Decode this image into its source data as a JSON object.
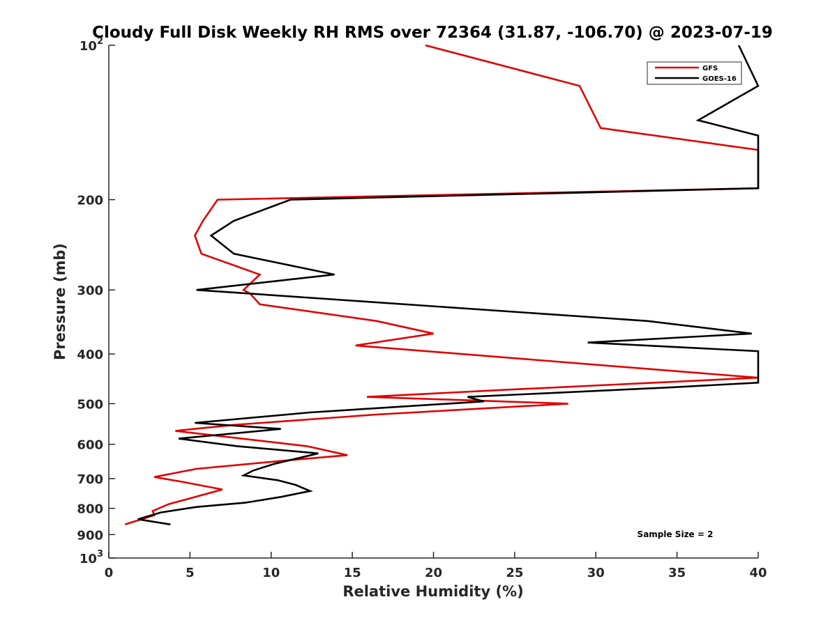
{
  "chart_data": {
    "type": "line",
    "title": "Cloudy Full Disk Weekly RH RMS over 72364 (31.87, -106.70) @ 2023-07-19",
    "xlabel": "Relative Humidity (%)",
    "ylabel": "Pressure (mb)",
    "xlim": [
      0,
      40
    ],
    "ylim": [
      100,
      1000
    ],
    "y_scale": "log",
    "y_reversed": true,
    "grid": false,
    "legend_position": "top-right",
    "x_ticks": [
      {
        "value": 0,
        "label": "0"
      },
      {
        "value": 5,
        "label": "5"
      },
      {
        "value": 10,
        "label": "10"
      },
      {
        "value": 15,
        "label": "15"
      },
      {
        "value": 20,
        "label": "20"
      },
      {
        "value": 25,
        "label": "25"
      },
      {
        "value": 30,
        "label": "30"
      },
      {
        "value": 35,
        "label": "35"
      },
      {
        "value": 40,
        "label": "40"
      }
    ],
    "y_ticks": [
      {
        "value": 100,
        "base": "10",
        "exp": "2"
      },
      {
        "value": 200,
        "label": "200"
      },
      {
        "value": 300,
        "label": "300"
      },
      {
        "value": 400,
        "label": "400"
      },
      {
        "value": 500,
        "label": "500"
      },
      {
        "value": 600,
        "label": "600"
      },
      {
        "value": 700,
        "label": "700"
      },
      {
        "value": 800,
        "label": "800"
      },
      {
        "value": 900,
        "label": "900"
      },
      {
        "value": 1000,
        "base": "10",
        "exp": "3"
      }
    ],
    "series": [
      {
        "name": "GFS",
        "color": "#e00000",
        "points": [
          [
            19.5,
            100
          ],
          [
            29.0,
            120
          ],
          [
            30.3,
            145
          ],
          [
            40.0,
            160
          ],
          [
            40.0,
            190
          ],
          [
            6.7,
            200
          ],
          [
            5.8,
            220
          ],
          [
            5.3,
            235
          ],
          [
            5.7,
            255
          ],
          [
            9.3,
            280
          ],
          [
            8.3,
            300
          ],
          [
            8.7,
            305
          ],
          [
            9.3,
            320
          ],
          [
            16.5,
            345
          ],
          [
            20.0,
            365
          ],
          [
            15.2,
            385
          ],
          [
            40.0,
            445
          ],
          [
            24.3,
            470
          ],
          [
            15.9,
            485
          ],
          [
            28.3,
            500
          ],
          [
            16.5,
            525
          ],
          [
            7.7,
            550
          ],
          [
            4.1,
            565
          ],
          [
            12.2,
            605
          ],
          [
            14.7,
            630
          ],
          [
            11.0,
            645
          ],
          [
            5.4,
            670
          ],
          [
            2.8,
            695
          ],
          [
            4.5,
            710
          ],
          [
            7.0,
            735
          ],
          [
            3.7,
            785
          ],
          [
            2.7,
            810
          ],
          [
            2.8,
            825
          ],
          [
            1.0,
            860
          ]
        ]
      },
      {
        "name": "GOES-16",
        "color": "#000000",
        "points": [
          [
            38.8,
            100
          ],
          [
            40.0,
            120
          ],
          [
            36.3,
            140
          ],
          [
            40.0,
            150
          ],
          [
            40.0,
            190
          ],
          [
            11.2,
            200
          ],
          [
            7.7,
            220
          ],
          [
            6.3,
            235
          ],
          [
            7.7,
            255
          ],
          [
            13.9,
            280
          ],
          [
            5.4,
            300
          ],
          [
            33.2,
            345
          ],
          [
            39.6,
            365
          ],
          [
            29.5,
            380
          ],
          [
            40.0,
            395
          ],
          [
            40.0,
            455
          ],
          [
            34.5,
            465
          ],
          [
            22.1,
            485
          ],
          [
            23.1,
            495
          ],
          [
            12.4,
            520
          ],
          [
            5.3,
            545
          ],
          [
            10.6,
            560
          ],
          [
            4.3,
            585
          ],
          [
            7.9,
            605
          ],
          [
            12.9,
            625
          ],
          [
            10.2,
            655
          ],
          [
            8.9,
            675
          ],
          [
            8.3,
            690
          ],
          [
            10.4,
            705
          ],
          [
            11.5,
            720
          ],
          [
            12.4,
            740
          ],
          [
            10.6,
            760
          ],
          [
            8.4,
            780
          ],
          [
            5.4,
            795
          ],
          [
            3.2,
            815
          ],
          [
            1.8,
            840
          ],
          [
            3.8,
            860
          ]
        ]
      }
    ],
    "annotations": [
      {
        "text": "Sample Size = 2"
      }
    ]
  }
}
